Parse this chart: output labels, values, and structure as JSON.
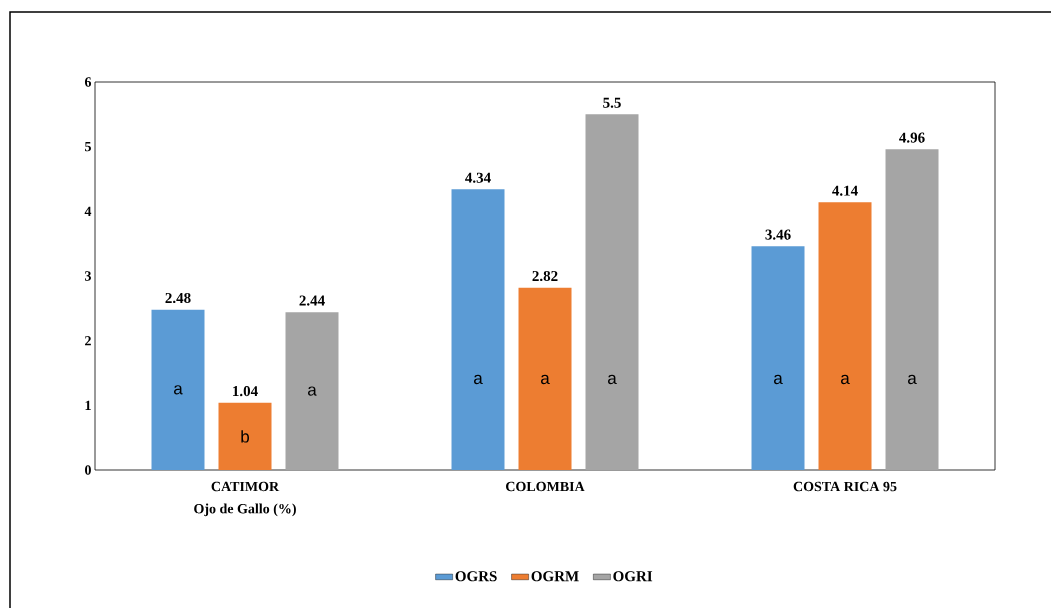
{
  "chart_data": {
    "type": "bar",
    "categories": [
      "CATIMOR",
      "COLOMBIA",
      "COSTA RICA 95"
    ],
    "xlabel": "Ojo de Gallo (%)",
    "series": [
      {
        "name": "OGRS",
        "color": "#5b9bd5",
        "values": [
          2.48,
          4.34,
          3.46
        ]
      },
      {
        "name": "OGRM",
        "color": "#ed7d31",
        "values": [
          1.04,
          2.82,
          4.14
        ]
      },
      {
        "name": "OGRI",
        "color": "#a5a5a5",
        "values": [
          2.44,
          5.5,
          4.96
        ]
      }
    ],
    "ylim": [
      0,
      6
    ],
    "yticks": [
      0,
      1,
      2,
      3,
      4,
      5,
      6
    ],
    "grid": false,
    "legend": "bottom",
    "data_labels": true,
    "annotations": [
      "a",
      "b",
      "a",
      "a",
      "a",
      "a",
      "a",
      "a",
      "a"
    ]
  }
}
